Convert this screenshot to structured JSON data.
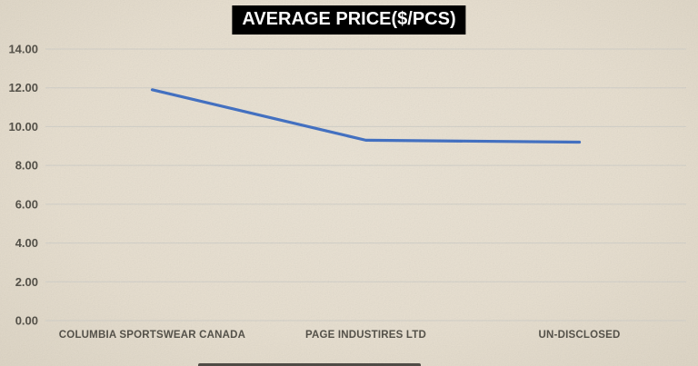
{
  "page": {
    "background_color": "#e7dfd0",
    "label_color": "#55524a",
    "gridline_color": "#d2d0c9",
    "title_bg_color": "#000000",
    "title_text_color": "#ffffff"
  },
  "chart_data": {
    "type": "line",
    "title": "AVERAGE PRICE($/PCS)",
    "categories": [
      "COLUMBIA SPORTSWEAR CANADA",
      "PAGE INDUSTIRES LTD",
      "UN-DISCLOSED"
    ],
    "series": [
      {
        "name": "AVERAGE PRICE($/PCS)",
        "values": [
          11.9,
          9.3,
          9.2
        ],
        "color": "#4472c4"
      }
    ],
    "xlabel": "",
    "ylabel": "",
    "ylim": [
      0,
      14
    ],
    "ytick_step": 2,
    "ytick_labels": [
      "0.00",
      "2.00",
      "4.00",
      "6.00",
      "8.00",
      "10.00",
      "12.00",
      "14.00"
    ],
    "grid": true,
    "legend_position": "none"
  }
}
